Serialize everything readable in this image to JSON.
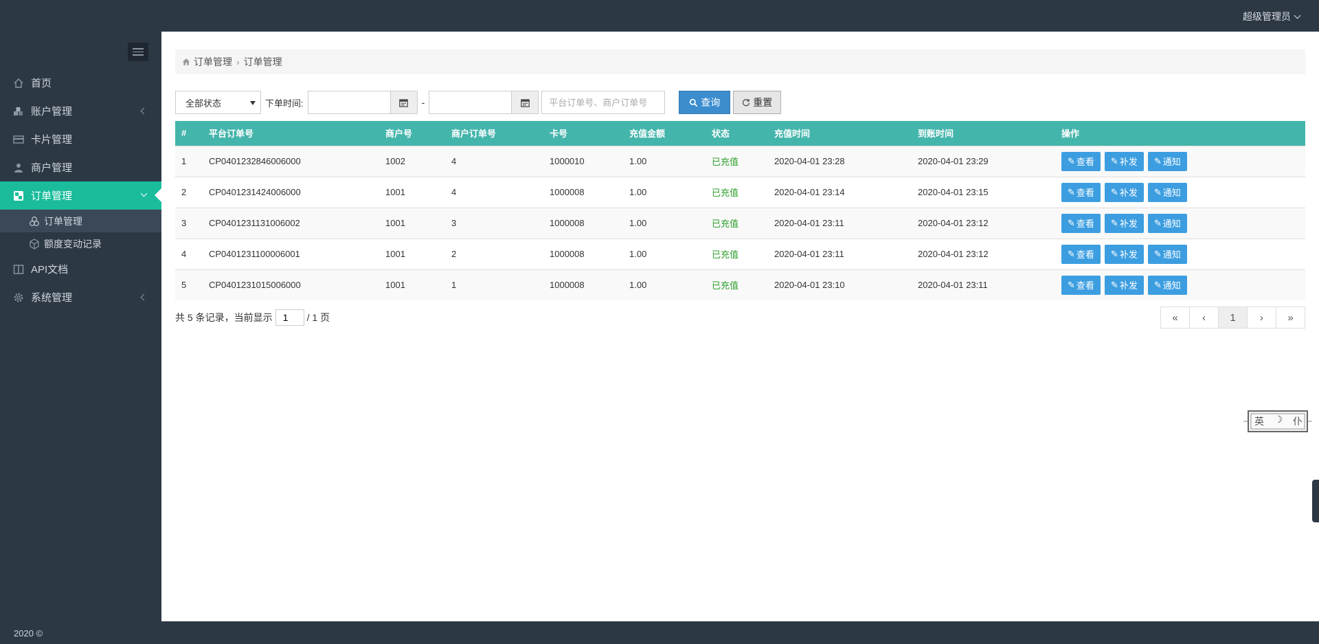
{
  "topbar": {
    "user_label": "超级管理员"
  },
  "sidebar": {
    "items": [
      {
        "label": "首页",
        "icon": "home-icon"
      },
      {
        "label": "账户管理",
        "icon": "cubes-icon"
      },
      {
        "label": "卡片管理",
        "icon": "credit-card-icon"
      },
      {
        "label": "商户管理",
        "icon": "user-icon"
      },
      {
        "label": "订单管理",
        "icon": "order-icon"
      },
      {
        "label": "API文档",
        "icon": "book-icon"
      },
      {
        "label": "系统管理",
        "icon": "gear-icon"
      }
    ],
    "subitems": [
      {
        "label": "订单管理",
        "icon": "cubes-icon"
      },
      {
        "label": "额度变动记录",
        "icon": "cube-icon"
      }
    ]
  },
  "breadcrumb": {
    "root": "订单管理",
    "current": "订单管理",
    "icon": "home-icon"
  },
  "filters": {
    "status_select": "全部状态",
    "time_label": "下单时间:",
    "date_sep": "-",
    "keyword_placeholder": "平台订单号、商户订单号",
    "search_label": "查询",
    "reset_label": "重置"
  },
  "table": {
    "headers": [
      "#",
      "平台订单号",
      "商户号",
      "商户订单号",
      "卡号",
      "充值金额",
      "状态",
      "充值时间",
      "到账时间",
      "操作"
    ],
    "action_labels": {
      "view": "查看",
      "resend": "补发",
      "notify": "通知"
    },
    "rows": [
      {
        "idx": "1",
        "order_no": "CP0401232846006000",
        "merchant_no": "1002",
        "merchant_order_no": "4",
        "card_no": "1000010",
        "amount": "1.00",
        "status": "已充值",
        "recharge_time": "2020-04-01 23:28",
        "arrival_time": "2020-04-01 23:29"
      },
      {
        "idx": "2",
        "order_no": "CP0401231424006000",
        "merchant_no": "1001",
        "merchant_order_no": "4",
        "card_no": "1000008",
        "amount": "1.00",
        "status": "已充值",
        "recharge_time": "2020-04-01 23:14",
        "arrival_time": "2020-04-01 23:15"
      },
      {
        "idx": "3",
        "order_no": "CP0401231131006002",
        "merchant_no": "1001",
        "merchant_order_no": "3",
        "card_no": "1000008",
        "amount": "1.00",
        "status": "已充值",
        "recharge_time": "2020-04-01 23:11",
        "arrival_time": "2020-04-01 23:12"
      },
      {
        "idx": "4",
        "order_no": "CP0401231100006001",
        "merchant_no": "1001",
        "merchant_order_no": "2",
        "card_no": "1000008",
        "amount": "1.00",
        "status": "已充值",
        "recharge_time": "2020-04-01 23:11",
        "arrival_time": "2020-04-01 23:12"
      },
      {
        "idx": "5",
        "order_no": "CP0401231015006000",
        "merchant_no": "1001",
        "merchant_order_no": "1",
        "card_no": "1000008",
        "amount": "1.00",
        "status": "已充值",
        "recharge_time": "2020-04-01 23:10",
        "arrival_time": "2020-04-01 23:11"
      }
    ]
  },
  "pager": {
    "prefix": "共 5 条记录，当前显示",
    "current_page": "1",
    "suffix": "/ 1 页",
    "first": "«",
    "prev": "‹",
    "page": "1",
    "next": "›",
    "last": "»"
  },
  "ime": {
    "lang": "英",
    "moon": "☽",
    "mode": "仆"
  },
  "footer": {
    "text": "2020 ©"
  },
  "colors": {
    "accent": "#1abc9c",
    "table_header": "#44b5ab",
    "primary": "#3c8dce",
    "status_ok": "#2ca02c",
    "dark": "#2d3845"
  }
}
